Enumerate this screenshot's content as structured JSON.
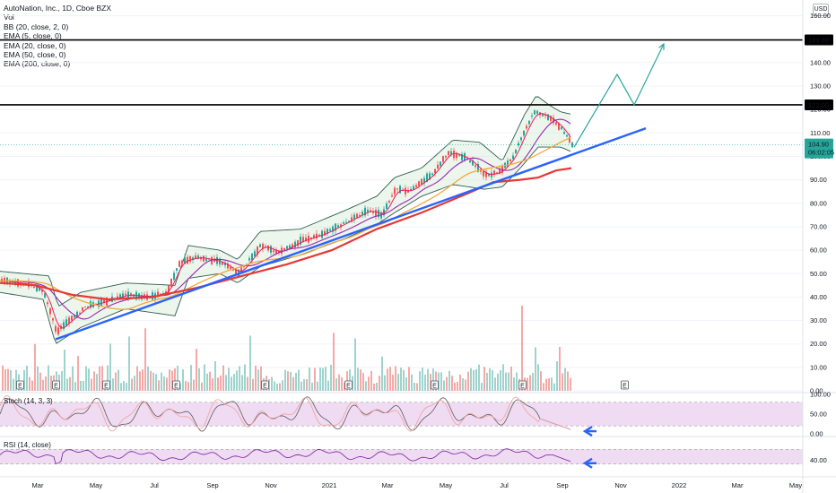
{
  "legend": {
    "title": "AutoNation, Inc., 1D, Cboe BZX",
    "lines": [
      "Vol",
      "BB (20, close, 2, 0)",
      "EMA (5, close, 0)",
      "EMA (20, close, 0)",
      "EMA (50, close, 0)",
      "EMA (200, close, 0)"
    ]
  },
  "currency": "USD",
  "colors": {
    "up": "#26a69a",
    "down": "#ef5350",
    "vol_up": "#9fd3cd",
    "vol_down": "#f5a9a7",
    "ema5": "#e91e63",
    "ema20": "#9c27b0",
    "ema50": "#f2a93b",
    "ema200": "#e53935",
    "bb": "#2f5d50",
    "bb_fill": "#c8e6c9",
    "trendline": "#2962ff",
    "projection": "#26a69a",
    "osc_fill": "#e1bee7",
    "stoch_k": "#5c5c5c",
    "stoch_d": "#f2a0a0",
    "rsi": "#7b1fa2",
    "arrow": "#2962ff"
  },
  "chart_data": {
    "type": "candlestick",
    "price_axis": {
      "ylim": [
        0,
        160
      ],
      "ticks": [
        "160.00",
        "140.00",
        "130.00",
        "120.00",
        "110.00",
        "100.00",
        "90.00",
        "80.00",
        "70.00",
        "60.00",
        "50.00",
        "40.00",
        "30.00",
        "20.00",
        "10.00",
        "0.00"
      ]
    },
    "time_axis": {
      "ticks": [
        "Mar",
        "May",
        "Jul",
        "Sep",
        "Nov",
        "2021",
        "Mar",
        "May",
        "Jul",
        "Sep",
        "Nov",
        "2022",
        "Mar",
        "May"
      ]
    },
    "horizontal_levels": [
      {
        "value": 149.69,
        "label": "149.69"
      },
      {
        "value": 122.0,
        "label": "122.00"
      }
    ],
    "last_price": {
      "value": 104.9,
      "label": "104.90",
      "countdown": "06:02:05"
    },
    "price_path": [
      [
        0,
        47
      ],
      [
        20,
        46
      ],
      [
        35,
        45
      ],
      [
        48,
        42
      ],
      [
        55,
        34
      ],
      [
        62,
        25
      ],
      [
        70,
        28
      ],
      [
        80,
        31
      ],
      [
        95,
        36
      ],
      [
        115,
        38
      ],
      [
        140,
        41
      ],
      [
        165,
        40
      ],
      [
        185,
        42
      ],
      [
        200,
        55
      ],
      [
        220,
        57
      ],
      [
        245,
        55
      ],
      [
        265,
        50
      ],
      [
        290,
        62
      ],
      [
        310,
        59
      ],
      [
        335,
        64
      ],
      [
        360,
        67
      ],
      [
        385,
        72
      ],
      [
        410,
        77
      ],
      [
        425,
        75
      ],
      [
        440,
        86
      ],
      [
        455,
        85
      ],
      [
        480,
        92
      ],
      [
        500,
        102
      ],
      [
        520,
        99
      ],
      [
        540,
        92
      ],
      [
        555,
        93
      ],
      [
        570,
        99
      ],
      [
        585,
        112
      ],
      [
        595,
        119
      ],
      [
        610,
        117
      ],
      [
        625,
        112
      ],
      [
        637,
        105
      ]
    ],
    "bb_upper_path": [
      [
        0,
        51
      ],
      [
        55,
        49
      ],
      [
        65,
        36
      ],
      [
        90,
        42
      ],
      [
        140,
        46
      ],
      [
        195,
        45
      ],
      [
        210,
        62
      ],
      [
        245,
        60
      ],
      [
        265,
        56
      ],
      [
        290,
        68
      ],
      [
        335,
        69
      ],
      [
        385,
        77
      ],
      [
        420,
        83
      ],
      [
        440,
        91
      ],
      [
        470,
        95
      ],
      [
        505,
        107
      ],
      [
        535,
        106
      ],
      [
        560,
        98
      ],
      [
        585,
        118
      ],
      [
        598,
        126
      ],
      [
        612,
        122
      ],
      [
        625,
        119
      ],
      [
        637,
        118
      ]
    ],
    "bb_lower_path": [
      [
        0,
        42
      ],
      [
        48,
        39
      ],
      [
        62,
        20
      ],
      [
        90,
        27
      ],
      [
        140,
        35
      ],
      [
        195,
        32
      ],
      [
        210,
        48
      ],
      [
        245,
        50
      ],
      [
        265,
        46
      ],
      [
        290,
        53
      ],
      [
        335,
        58
      ],
      [
        385,
        65
      ],
      [
        420,
        71
      ],
      [
        440,
        76
      ],
      [
        470,
        83
      ],
      [
        505,
        88
      ],
      [
        540,
        86
      ],
      [
        560,
        87
      ],
      [
        580,
        95
      ],
      [
        600,
        104
      ],
      [
        625,
        104
      ],
      [
        637,
        102
      ]
    ],
    "ema200_path": [
      [
        0,
        46
      ],
      [
        40,
        45
      ],
      [
        80,
        41
      ],
      [
        120,
        39
      ],
      [
        170,
        40
      ],
      [
        220,
        44
      ],
      [
        270,
        49
      ],
      [
        320,
        54
      ],
      [
        370,
        60
      ],
      [
        420,
        69
      ],
      [
        470,
        76
      ],
      [
        520,
        84
      ],
      [
        550,
        89
      ],
      [
        580,
        90
      ],
      [
        600,
        91
      ],
      [
        620,
        94
      ],
      [
        637,
        95
      ]
    ],
    "trendline": [
      [
        62,
        22
      ],
      [
        720,
        112
      ]
    ],
    "projection": [
      [
        640,
        104
      ],
      [
        688,
        135
      ],
      [
        707,
        122
      ],
      [
        740,
        148
      ]
    ],
    "volume_axis_note": "overlay volume bars in price pane; E markers mark earnings",
    "earnings_markers": [
      22,
      62,
      118,
      196,
      295,
      388,
      484,
      582,
      696
    ],
    "stoch": {
      "label": "Stoch (14, 3, 3)",
      "ticks": [
        "100.00",
        "50.00",
        "0.00"
      ],
      "band": [
        20,
        80
      ]
    },
    "rsi": {
      "label": "RSI (14, close)",
      "ticks": [
        "40.00"
      ],
      "band": [
        30,
        70
      ]
    }
  }
}
